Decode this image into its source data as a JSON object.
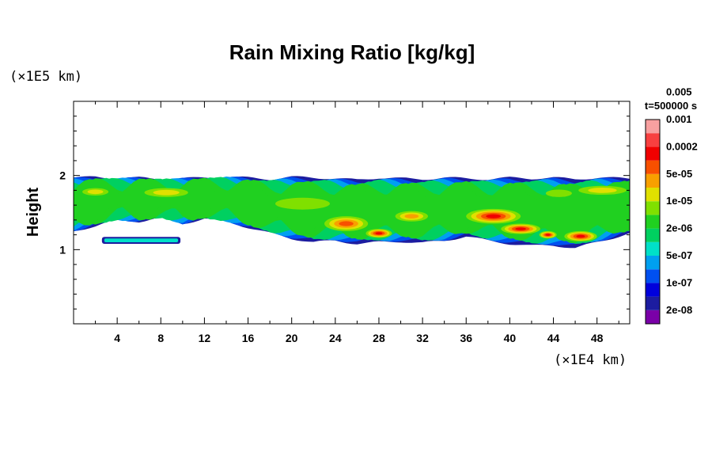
{
  "chart_data": {
    "type": "heatmap",
    "title": "Rain Mixing Ratio [kg/kg]",
    "time_label": "t=500000 s",
    "xlabel": "",
    "ylabel": "Height",
    "x_unit": "(×1E4 km)",
    "y_unit": "(×1E5 km)",
    "xlim": [
      0,
      51
    ],
    "ylim": [
      0,
      3
    ],
    "x_ticks": [
      4,
      8,
      12,
      16,
      20,
      24,
      28,
      32,
      36,
      40,
      44,
      48
    ],
    "y_ticks": [
      1,
      2
    ],
    "colorbar": {
      "colors": [
        "#7a00a8",
        "#1c1ca0",
        "#0000dc",
        "#0050f0",
        "#00a0f0",
        "#00e0c8",
        "#00d060",
        "#20d020",
        "#80e000",
        "#e0e000",
        "#f8a000",
        "#f85000",
        "#f00000",
        "#f84040",
        "#f8a0a0"
      ],
      "labels": [
        "2e-08",
        "1e-07",
        "5e-07",
        "2e-06",
        "1e-05",
        "5e-05",
        "0.0002",
        "0.001",
        "0.005"
      ]
    },
    "field": {
      "layer_top": [
        [
          0,
          1.97
        ],
        [
          2,
          1.98
        ],
        [
          4,
          1.96
        ],
        [
          6,
          1.97
        ],
        [
          8,
          1.95
        ],
        [
          10,
          1.96
        ],
        [
          12,
          1.97
        ],
        [
          14,
          1.98
        ],
        [
          16,
          1.97
        ],
        [
          18,
          1.95
        ],
        [
          20,
          1.98
        ],
        [
          22,
          1.97
        ],
        [
          24,
          1.96
        ],
        [
          26,
          1.94
        ],
        [
          28,
          1.97
        ],
        [
          30,
          1.96
        ],
        [
          32,
          1.95
        ],
        [
          34,
          1.97
        ],
        [
          36,
          1.96
        ],
        [
          38,
          1.95
        ],
        [
          40,
          1.97
        ],
        [
          42,
          1.96
        ],
        [
          44,
          1.97
        ],
        [
          46,
          1.95
        ],
        [
          48,
          1.97
        ],
        [
          51,
          1.96
        ]
      ],
      "layer_bottom": [
        [
          0,
          1.25
        ],
        [
          2,
          1.32
        ],
        [
          4,
          1.4
        ],
        [
          6,
          1.38
        ],
        [
          8,
          1.43
        ],
        [
          10,
          1.35
        ],
        [
          12,
          1.42
        ],
        [
          14,
          1.38
        ],
        [
          16,
          1.3
        ],
        [
          18,
          1.22
        ],
        [
          20,
          1.15
        ],
        [
          22,
          1.1
        ],
        [
          24,
          1.12
        ],
        [
          26,
          1.08
        ],
        [
          28,
          1.1
        ],
        [
          30,
          1.11
        ],
        [
          32,
          1.09
        ],
        [
          34,
          1.12
        ],
        [
          36,
          1.18
        ],
        [
          38,
          1.12
        ],
        [
          40,
          1.08
        ],
        [
          42,
          1.05
        ],
        [
          44,
          1.06
        ],
        [
          46,
          1.02
        ],
        [
          48,
          1.1
        ],
        [
          51,
          1.22
        ]
      ],
      "patch": {
        "x": [
          2.6,
          9.8
        ],
        "y": [
          1.1,
          1.15
        ],
        "level": 5
      },
      "cores": [
        {
          "x": 2.0,
          "y": 1.78,
          "rx": 1.2,
          "ry": 0.05,
          "level": 9
        },
        {
          "x": 8.5,
          "y": 1.77,
          "rx": 2.0,
          "ry": 0.06,
          "level": 9
        },
        {
          "x": 21.0,
          "y": 1.62,
          "rx": 2.5,
          "ry": 0.08,
          "level": 8
        },
        {
          "x": 25.0,
          "y": 1.35,
          "rx": 2.0,
          "ry": 0.1,
          "level": 11
        },
        {
          "x": 28.0,
          "y": 1.22,
          "rx": 1.2,
          "ry": 0.06,
          "level": 12
        },
        {
          "x": 31.0,
          "y": 1.45,
          "rx": 1.5,
          "ry": 0.07,
          "level": 10
        },
        {
          "x": 38.5,
          "y": 1.45,
          "rx": 2.5,
          "ry": 0.1,
          "level": 12
        },
        {
          "x": 41.0,
          "y": 1.28,
          "rx": 1.8,
          "ry": 0.07,
          "level": 12
        },
        {
          "x": 43.5,
          "y": 1.2,
          "rx": 0.8,
          "ry": 0.05,
          "level": 12
        },
        {
          "x": 46.5,
          "y": 1.18,
          "rx": 1.5,
          "ry": 0.07,
          "level": 12
        },
        {
          "x": 48.5,
          "y": 1.8,
          "rx": 2.2,
          "ry": 0.06,
          "level": 9
        },
        {
          "x": 44.5,
          "y": 1.76,
          "rx": 1.2,
          "ry": 0.05,
          "level": 8
        }
      ]
    }
  }
}
